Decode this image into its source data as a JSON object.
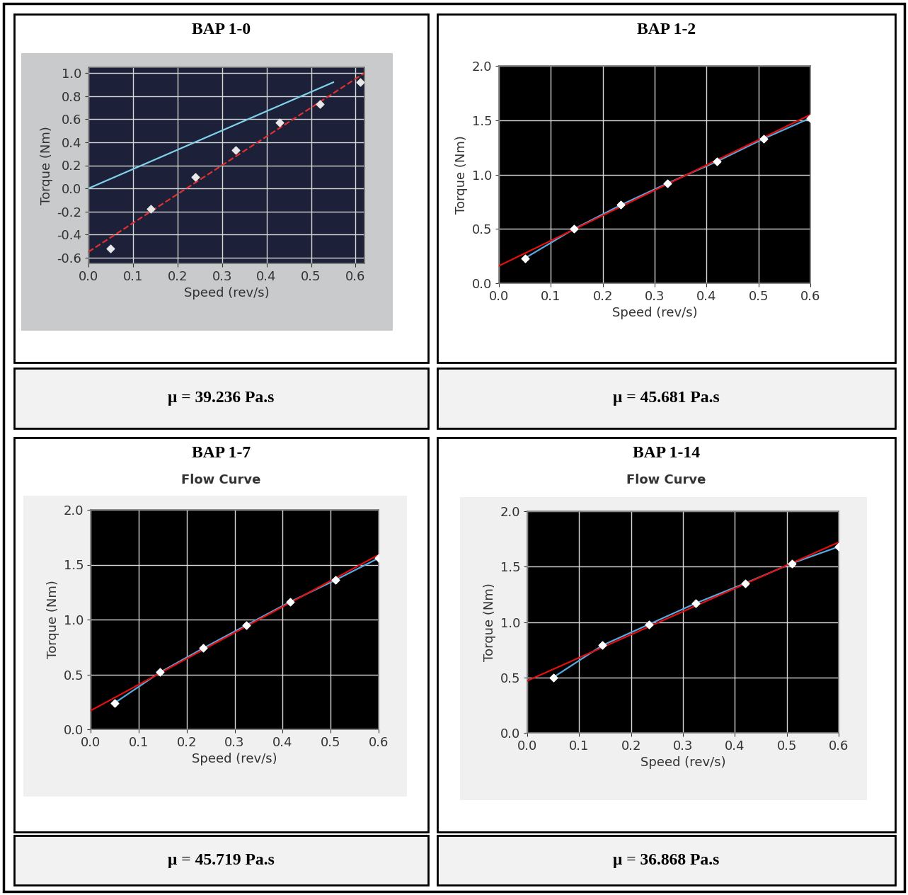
{
  "chart_data": [
    {
      "type": "scatter",
      "title": "BAP 1-0",
      "x_label": "Speed (rev/s)",
      "y_label": "Torque (Nm)",
      "xlim": [
        0.0,
        0.62
      ],
      "xticks": [
        0.0,
        0.1,
        0.2,
        0.3,
        0.4,
        0.5,
        0.6
      ],
      "ylim": [
        -0.65,
        1.05
      ],
      "yticks": [
        -0.6,
        -0.4,
        -0.2,
        0.0,
        0.2,
        0.4,
        0.6,
        0.8,
        1.0
      ],
      "grid": true,
      "series": [
        {
          "type": "line",
          "color": "#e03030",
          "line_style": "dashed",
          "x": [
            0.0,
            0.62
          ],
          "values": [
            -0.55,
            1.0
          ]
        },
        {
          "type": "line",
          "color": "#7fd0e8",
          "line_style": "solid",
          "x": [
            0.0,
            0.55
          ],
          "values": [
            0.0,
            0.92
          ]
        },
        {
          "type": "scatter",
          "color": "#e8e8e8",
          "marker": "diamond",
          "x": [
            0.05,
            0.14,
            0.24,
            0.33,
            0.43,
            0.52,
            0.61
          ],
          "values": [
            -0.52,
            -0.18,
            0.1,
            0.33,
            0.57,
            0.73,
            0.92
          ]
        }
      ],
      "annotation": "μ = 39.236 Pa.s"
    },
    {
      "type": "scatter",
      "title": "BAP 1-2",
      "x_label": "Speed (rev/s)",
      "y_label": "Torque (Nm)",
      "xlim": [
        0.0,
        0.6
      ],
      "xticks": [
        0.0,
        0.1,
        0.2,
        0.3,
        0.4,
        0.5,
        0.6
      ],
      "ylim": [
        0.0,
        2.0
      ],
      "yticks": [
        0.0,
        0.5,
        1.0,
        1.5,
        2.0
      ],
      "grid": true,
      "series": [
        {
          "type": "line",
          "color": "#5aa8e0",
          "line_style": "solid",
          "x": [
            0.05,
            0.145,
            0.235,
            0.325,
            0.42,
            0.51,
            0.6
          ],
          "values": [
            0.23,
            0.5,
            0.72,
            0.92,
            1.12,
            1.33,
            1.52
          ]
        },
        {
          "type": "line",
          "color": "#e01010",
          "line_style": "solid",
          "x": [
            0.0,
            0.6
          ],
          "values": [
            0.16,
            1.55
          ]
        },
        {
          "type": "scatter",
          "color": "#ffffff",
          "marker": "diamond",
          "x": [
            0.05,
            0.145,
            0.235,
            0.325,
            0.42,
            0.51,
            0.6
          ],
          "values": [
            0.23,
            0.5,
            0.72,
            0.92,
            1.12,
            1.33,
            1.52
          ]
        }
      ],
      "annotation": "μ = 45.681 Pa.s"
    },
    {
      "type": "scatter",
      "title": "BAP 1-7",
      "subtitle": "Flow Curve",
      "x_label": "Speed (rev/s)",
      "y_label": "Torque (Nm)",
      "xlim": [
        0.0,
        0.6
      ],
      "xticks": [
        0.0,
        0.1,
        0.2,
        0.3,
        0.4,
        0.5,
        0.6
      ],
      "ylim": [
        0.0,
        2.0
      ],
      "yticks": [
        0.0,
        0.5,
        1.0,
        1.5,
        2.0
      ],
      "grid": true,
      "series": [
        {
          "type": "line",
          "color": "#5aa8e0",
          "line_style": "solid",
          "x": [
            0.05,
            0.145,
            0.235,
            0.325,
            0.415,
            0.51,
            0.6
          ],
          "values": [
            0.24,
            0.52,
            0.74,
            0.95,
            1.16,
            1.36,
            1.56
          ]
        },
        {
          "type": "line",
          "color": "#e01010",
          "line_style": "solid",
          "x": [
            0.0,
            0.6
          ],
          "values": [
            0.17,
            1.59
          ]
        },
        {
          "type": "scatter",
          "color": "#ffffff",
          "marker": "diamond",
          "x": [
            0.05,
            0.145,
            0.235,
            0.325,
            0.415,
            0.51,
            0.6
          ],
          "values": [
            0.24,
            0.52,
            0.74,
            0.95,
            1.16,
            1.36,
            1.56
          ]
        }
      ],
      "annotation": "μ = 45.719 Pa.s"
    },
    {
      "type": "scatter",
      "title": "BAP 1-14",
      "subtitle": "Flow Curve",
      "x_label": "Speed (rev/s)",
      "y_label": "Torque (Nm)",
      "xlim": [
        0.0,
        0.6
      ],
      "xticks": [
        0.0,
        0.1,
        0.2,
        0.3,
        0.4,
        0.5,
        0.6
      ],
      "ylim": [
        0.0,
        2.0
      ],
      "yticks": [
        0.0,
        0.5,
        1.0,
        1.5,
        2.0
      ],
      "grid": true,
      "series": [
        {
          "type": "line",
          "color": "#5aa8e0",
          "line_style": "solid",
          "x": [
            0.05,
            0.145,
            0.235,
            0.325,
            0.42,
            0.51,
            0.6
          ],
          "values": [
            0.5,
            0.79,
            0.98,
            1.17,
            1.35,
            1.53,
            1.68
          ]
        },
        {
          "type": "line",
          "color": "#e01010",
          "line_style": "solid",
          "x": [
            0.0,
            0.6
          ],
          "values": [
            0.47,
            1.72
          ]
        },
        {
          "type": "scatter",
          "color": "#ffffff",
          "marker": "diamond",
          "x": [
            0.05,
            0.145,
            0.235,
            0.325,
            0.42,
            0.51,
            0.6
          ],
          "values": [
            0.5,
            0.79,
            0.98,
            1.17,
            1.35,
            1.53,
            1.68
          ]
        }
      ],
      "annotation": "μ = 36.868 Pa.s"
    }
  ]
}
